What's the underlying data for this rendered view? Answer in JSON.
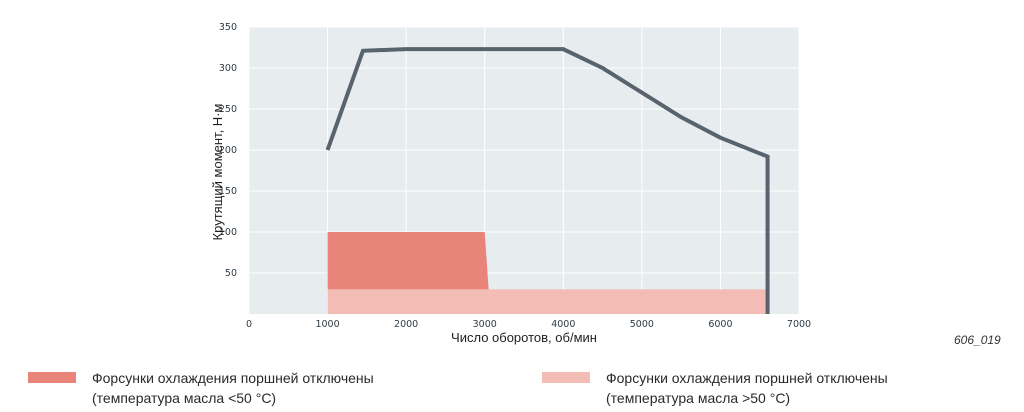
{
  "figure_id": "606_019",
  "chart_data": {
    "type": "line",
    "xlabel": "Число оборотов, об/мин",
    "ylabel": "Крутящий момент, Н·м",
    "xlim": [
      0,
      7000
    ],
    "ylim": [
      0,
      350
    ],
    "x_ticks": [
      0,
      1000,
      2000,
      3000,
      4000,
      5000,
      6000,
      7000
    ],
    "y_ticks": [
      50,
      100,
      150,
      200,
      250,
      300,
      350
    ],
    "grid": true,
    "colors": {
      "plot_background": "#e7ecef",
      "grid": "#ffffff",
      "line": "#57636d",
      "zone_dark": "#e8847a",
      "zone_light": "#f3bcb5"
    },
    "series": [
      {
        "x": [
          1000,
          1450,
          2000,
          3000,
          4000,
          4500,
          5000,
          5500,
          6000,
          6600,
          6600
        ],
        "values": [
          200,
          321,
          323,
          323,
          323,
          300,
          270,
          240,
          215,
          192,
          0
        ]
      }
    ],
    "areas": [
      {
        "x": [
          1000,
          3000,
          3050
        ],
        "values": [
          100,
          100,
          30
        ],
        "color": "zone_dark"
      },
      {
        "x": [
          1000,
          6600
        ],
        "values": [
          30,
          30
        ],
        "color": "zone_light"
      }
    ],
    "legend": [
      {
        "line1": "Форсунки охлаждения поршней отключены",
        "line2": "(температура масла <50 °C)",
        "color": "#e8847a"
      },
      {
        "line1": "Форсунки охлаждения поршней отключены",
        "line2": "(температура масла >50 °C)",
        "color": "#f3bcb5"
      }
    ]
  }
}
